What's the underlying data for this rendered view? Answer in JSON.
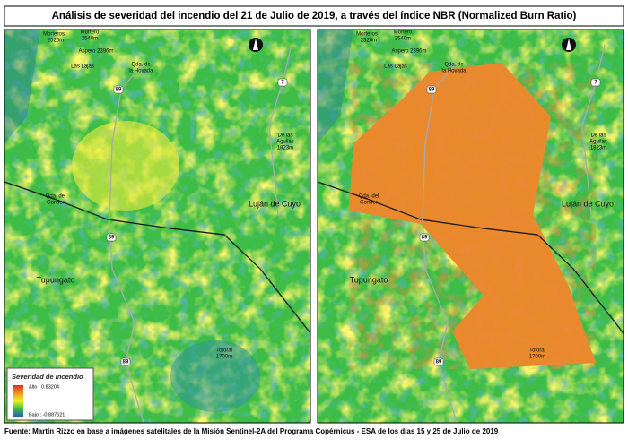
{
  "header": {
    "title": "Análisis de severidad del incendio del 21 de Julio de 2019, a través del índice NBR (Normalized Burn Ratio)"
  },
  "legend": {
    "title": "Severidad de incendio",
    "high": "Alto : 0.83204",
    "low": "Bajo : -0.887621"
  },
  "place_labels": [
    "Morteros",
    "2520m",
    "Mortero",
    "2540m",
    "Aspero 2396m",
    "Las Lajas",
    "Qda. de",
    "la Hoyada",
    "De las",
    "Aguilas",
    "1823m",
    "Luján de Cuyo",
    "Qda. del",
    "Condor",
    "Tupungato",
    "Totoral",
    "1700m"
  ],
  "route_labels": [
    "89",
    "7",
    "89",
    "89"
  ],
  "footer": {
    "source": "Fuente: Martín Rizzo en base a imágenes satelitales de la Misión Sentinel-2A del Programa Copérnicus - ESA de los días 15 y 25 de Julio de 2019"
  }
}
